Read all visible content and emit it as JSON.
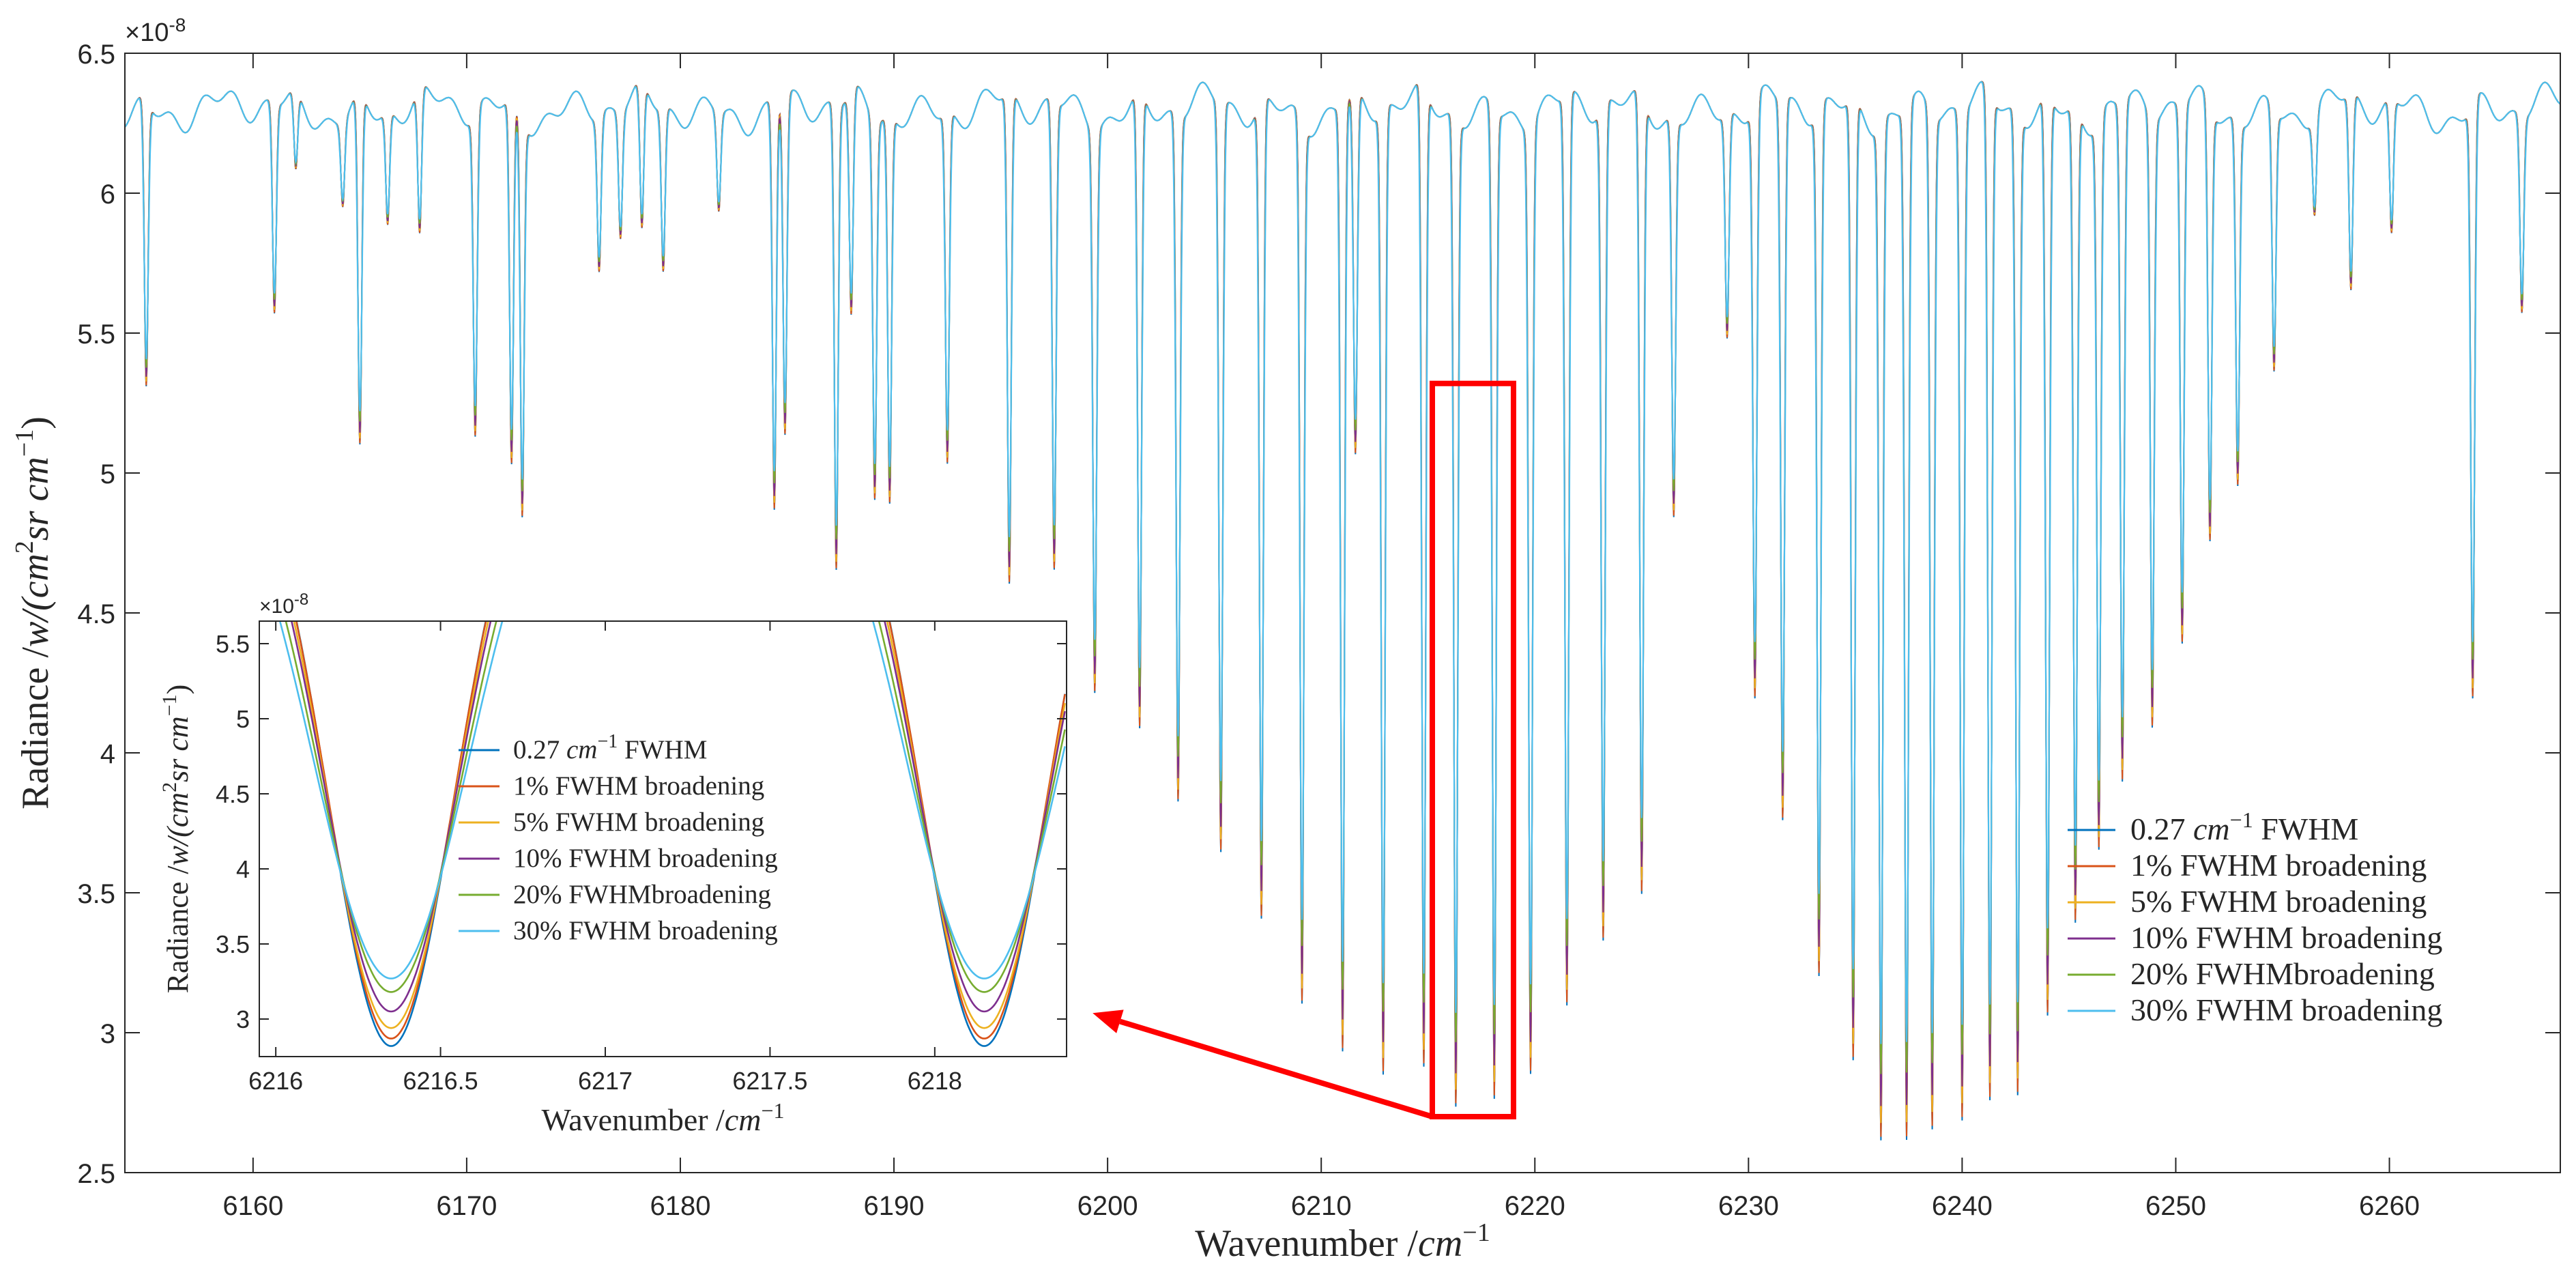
{
  "chart_data": [
    {
      "id": "main",
      "type": "line",
      "title": "",
      "xlabel_prefix": "Wavenumber /",
      "xlabel_unit": "cm",
      "xlabel_exp": "−1",
      "ylabel_prefix": "Radiance /",
      "ylabel_unit_a": "w/(cm",
      "ylabel_unit_b": "sr cm",
      "ylabel_exp2": "2",
      "ylabel_exp": "−1",
      "ylabel_close": ")",
      "scale_base": "×10",
      "scale_exp": "-8",
      "xlim": [
        6154,
        6268
      ],
      "ylim": [
        2.5,
        6.5
      ],
      "xticks": [
        6160,
        6170,
        6180,
        6190,
        6200,
        6210,
        6220,
        6230,
        6240,
        6250,
        6260
      ],
      "xtick_labels": [
        "6160",
        "6170",
        "6180",
        "6190",
        "6200",
        "6210",
        "6220",
        "6230",
        "6240",
        "6250",
        "6260"
      ],
      "yticks": [
        2.5,
        3,
        3.5,
        4,
        4.5,
        5,
        5.5,
        6,
        6.5
      ],
      "ytick_labels": [
        "2.5",
        "3",
        "3.5",
        "4",
        "4.5",
        "5",
        "5.5",
        "6",
        "6.5"
      ],
      "baseline": 6.3,
      "line_width": 0.12,
      "dips": [
        [
          6155.0,
          5.28
        ],
        [
          6161.0,
          5.55
        ],
        [
          6162.0,
          6.02
        ],
        [
          6164.2,
          6.0
        ],
        [
          6165.0,
          5.05
        ],
        [
          6166.3,
          5.9
        ],
        [
          6167.8,
          5.78
        ],
        [
          6170.4,
          5.15
        ],
        [
          6172.1,
          5.0
        ],
        [
          6172.6,
          4.88
        ],
        [
          6176.2,
          5.75
        ],
        [
          6177.2,
          5.85
        ],
        [
          6178.2,
          5.78
        ],
        [
          6179.2,
          5.72
        ],
        [
          6181.8,
          5.95
        ],
        [
          6184.4,
          4.85
        ],
        [
          6184.9,
          5.1
        ],
        [
          6187.3,
          4.64
        ],
        [
          6188.0,
          5.5
        ],
        [
          6189.1,
          4.95
        ],
        [
          6189.8,
          4.92
        ],
        [
          6192.5,
          5.05
        ],
        [
          6195.4,
          4.55
        ],
        [
          6197.5,
          4.63
        ],
        [
          6199.4,
          4.3
        ],
        [
          6201.5,
          4.03
        ],
        [
          6203.3,
          3.85
        ],
        [
          6205.3,
          3.63
        ],
        [
          6207.2,
          3.38
        ],
        [
          6209.1,
          3.15
        ],
        [
          6211.0,
          2.93
        ],
        [
          6211.6,
          5.0
        ],
        [
          6212.9,
          2.86
        ],
        [
          6214.8,
          2.8
        ],
        [
          6216.3,
          2.77
        ],
        [
          6218.1,
          2.77
        ],
        [
          6219.8,
          2.93
        ],
        [
          6221.5,
          3.05
        ],
        [
          6223.2,
          3.32
        ],
        [
          6225.0,
          3.45
        ],
        [
          6226.5,
          4.88
        ],
        [
          6229.0,
          5.5
        ],
        [
          6230.3,
          4.18
        ],
        [
          6231.6,
          3.73
        ],
        [
          6233.3,
          3.21
        ],
        [
          6234.9,
          2.87
        ],
        [
          6236.2,
          2.68
        ],
        [
          6237.4,
          2.62
        ],
        [
          6238.6,
          2.68
        ],
        [
          6240.0,
          2.7
        ],
        [
          6241.3,
          2.7
        ],
        [
          6242.6,
          2.8
        ],
        [
          6244.0,
          3.02
        ],
        [
          6245.3,
          3.4
        ],
        [
          6246.4,
          3.7
        ],
        [
          6247.5,
          3.88
        ],
        [
          6248.9,
          4.13
        ],
        [
          6250.3,
          4.38
        ],
        [
          6251.6,
          4.75
        ],
        [
          6252.9,
          5.0
        ],
        [
          6254.6,
          5.37
        ],
        [
          6256.5,
          5.95
        ],
        [
          6258.2,
          5.6
        ],
        [
          6260.1,
          5.82
        ],
        [
          6263.9,
          4.18
        ],
        [
          6266.2,
          5.6
        ]
      ],
      "series": [
        {
          "name": "0.27 cm−1 FWHM",
          "name_value": "0.27",
          "name_unit": "cm",
          "name_exp": "−1",
          "name_rest": "FWHM",
          "color": "#0072BD",
          "broadening": 0.0
        },
        {
          "name": "1% FWHM broadening",
          "color": "#D95319",
          "broadening": 0.01
        },
        {
          "name": "5% FWHM broadening",
          "color": "#EDB120",
          "broadening": 0.05
        },
        {
          "name": "10% FWHM broadening",
          "color": "#7E2F8E",
          "broadening": 0.1
        },
        {
          "name": "20% FWHMbroadening",
          "color": "#77AC30",
          "broadening": 0.2
        },
        {
          "name": "30% FWHM broadening",
          "color": "#4DBEEE",
          "broadening": 0.3
        }
      ],
      "highlight_box": {
        "x": [
          6215.2,
          6219.0
        ],
        "y": [
          2.7,
          5.32
        ],
        "color": "#FF0000"
      },
      "arrow": {
        "from": [
          6215.2,
          2.7
        ],
        "to": [
          6199.3,
          3.07
        ],
        "color": "#FF0000"
      },
      "legend_position": "bottom-right"
    },
    {
      "id": "inset",
      "type": "line",
      "title": "",
      "xlabel_prefix": "Wavenumber /",
      "xlabel_unit": "cm",
      "xlabel_exp": "−1",
      "ylabel_prefix": "Radiance /",
      "ylabel_unit_a": "w/(cm",
      "ylabel_unit_b": "sr cm",
      "ylabel_exp2": "2",
      "ylabel_exp": "−1",
      "ylabel_close": ")",
      "scale_base": "×10",
      "scale_exp": "-8",
      "xlim": [
        6215.95,
        6218.4
      ],
      "ylim": [
        2.75,
        5.65
      ],
      "xticks": [
        6216,
        6216.5,
        6217,
        6217.5,
        6218
      ],
      "xtick_labels": [
        "6216",
        "6216.5",
        "6217",
        "6217.5",
        "6218"
      ],
      "yticks": [
        3,
        3.5,
        4,
        4.5,
        5,
        5.5
      ],
      "ytick_labels": [
        "3",
        "3.5",
        "4",
        "4.5",
        "5",
        "5.5"
      ],
      "dip_centers": [
        6216.35,
        6218.15
      ],
      "dip_halfwidth": 0.27,
      "minima": [
        2.82,
        2.87,
        2.94,
        3.05,
        3.18,
        3.27
      ],
      "legend_position": "top-left"
    }
  ]
}
